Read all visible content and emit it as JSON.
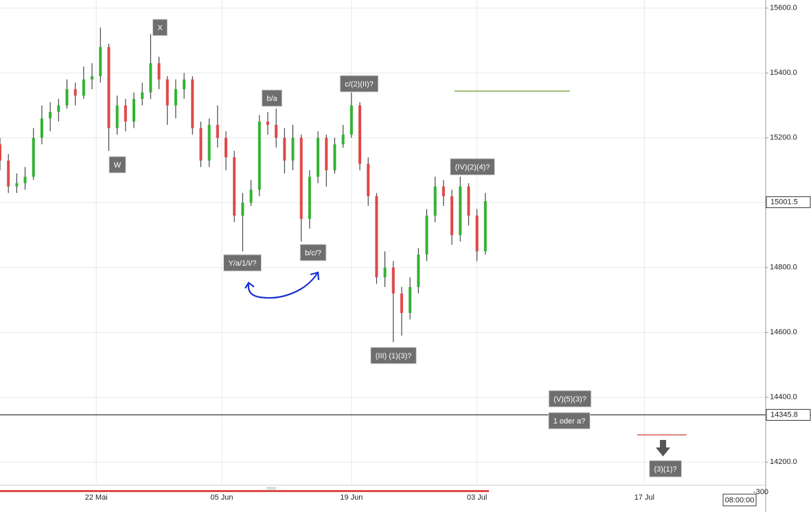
{
  "chart_data": {
    "type": "candlestick",
    "x": [
      0,
      2,
      4,
      6,
      8,
      10,
      12,
      14,
      16,
      18,
      20,
      22,
      24,
      26,
      28,
      30,
      32,
      34,
      36,
      38,
      40,
      42,
      44,
      46,
      48,
      50,
      52,
      54,
      56,
      58,
      60,
      62,
      64,
      66,
      68,
      70,
      72,
      74,
      76,
      78,
      80,
      82,
      84,
      86,
      88,
      90,
      92,
      94,
      96,
      98,
      100,
      102,
      104,
      106,
      108,
      110,
      112,
      114,
      116
    ],
    "open": [
      15180,
      15130,
      15050,
      15060,
      15080,
      15200,
      15260,
      15280,
      15300,
      15350,
      15330,
      15380,
      15390,
      15480,
      15230,
      15300,
      15250,
      15320,
      15340,
      15430,
      15380,
      15300,
      15350,
      15380,
      15230,
      15130,
      15240,
      15200,
      15140,
      14960,
      15000,
      15040,
      15250,
      15240,
      15200,
      15130,
      15200,
      14950,
      15080,
      15200,
      15100,
      15180,
      15210,
      15300,
      15120,
      15020,
      14770,
      14800,
      14720,
      14660,
      14740,
      14840,
      14960,
      15050,
      15020,
      14900,
      15050,
      14960,
      14850
    ],
    "high": [
      15200,
      15150,
      15090,
      15110,
      15230,
      15300,
      15310,
      15320,
      15380,
      15370,
      15420,
      15430,
      15540,
      15490,
      15330,
      15320,
      15340,
      15370,
      15520,
      15450,
      15390,
      15380,
      15400,
      15390,
      15250,
      15260,
      15300,
      15220,
      15160,
      15030,
      15070,
      15270,
      15280,
      15290,
      15230,
      15240,
      15210,
      15100,
      15220,
      15210,
      15200,
      15240,
      15340,
      15310,
      15140,
      15030,
      14850,
      14820,
      14740,
      14770,
      14860,
      14980,
      15080,
      15070,
      15040,
      15080,
      15060,
      14980,
      15030
    ],
    "low": [
      15100,
      15030,
      15030,
      15040,
      15070,
      15180,
      15220,
      15250,
      15290,
      15300,
      15320,
      15350,
      15370,
      15160,
      15210,
      15220,
      15230,
      15300,
      15320,
      15350,
      15240,
      15260,
      15320,
      15210,
      15110,
      15110,
      15170,
      15100,
      14940,
      14850,
      14990,
      15020,
      15210,
      15170,
      15090,
      15100,
      14880,
      14920,
      15060,
      15050,
      15090,
      15170,
      15200,
      15100,
      14990,
      14750,
      14740,
      14570,
      14590,
      14640,
      14720,
      14820,
      14940,
      14990,
      14870,
      14880,
      14930,
      14820,
      14840
    ],
    "close": [
      15130,
      15050,
      15060,
      15080,
      15200,
      15260,
      15280,
      15300,
      15350,
      15330,
      15380,
      15390,
      15480,
      15230,
      15300,
      15250,
      15320,
      15340,
      15430,
      15380,
      15300,
      15350,
      15380,
      15230,
      15130,
      15240,
      15200,
      15140,
      14960,
      15000,
      15040,
      15250,
      15240,
      15200,
      15130,
      15200,
      14950,
      15080,
      15200,
      15100,
      15180,
      15210,
      15300,
      15120,
      15020,
      14770,
      14800,
      14720,
      14660,
      14740,
      14840,
      14960,
      15050,
      15020,
      14900,
      15050,
      14960,
      14850,
      15005
    ],
    "up_color": "#33b233",
    "down_color": "#e04848",
    "xlim": [
      0,
      183
    ],
    "xticks": [
      {
        "value": 23,
        "label": "22 Mai"
      },
      {
        "value": 53,
        "label": "05 Jun"
      },
      {
        "value": 84,
        "label": "19 Jun"
      },
      {
        "value": 114,
        "label": "03 Jul"
      },
      {
        "value": 154,
        "label": "17 Jul"
      }
    ],
    "ylim": [
      14133,
      15625
    ],
    "yticks": [
      {
        "value": 14200,
        "label": "14200.0"
      },
      {
        "value": 14400,
        "label": "14400.0"
      },
      {
        "value": 14600,
        "label": "14600.0"
      },
      {
        "value": 14800,
        "label": "14800.0"
      },
      {
        "value": 15000,
        "label": "15000.0"
      },
      {
        "value": 15200,
        "label": "15200.0"
      },
      {
        "value": 15400,
        "label": "15400.0"
      },
      {
        "value": 15600,
        "label": "15600.0"
      }
    ],
    "grid": true,
    "last_price": 15001.5,
    "hline": 14345.8,
    "levels": [
      {
        "value": 15344,
        "x": [
          108.6,
          136.2
        ],
        "color": "#6a9a1f"
      },
      {
        "value": 14284,
        "x": [
          152.3,
          164.1
        ],
        "color": "#d04040"
      }
    ],
    "annotations": [
      "X",
      "W",
      "b/a",
      "c/(2)(II)?",
      "Y/a/1/I/?",
      "b/c/?",
      "(III) (1)(3)?",
      "(IV)(2)(4)?",
      "(V)(5)(3)?",
      "1 oder a?",
      "(3)(1)?"
    ],
    "indicator_label": "-300",
    "time": "08:00:00"
  }
}
